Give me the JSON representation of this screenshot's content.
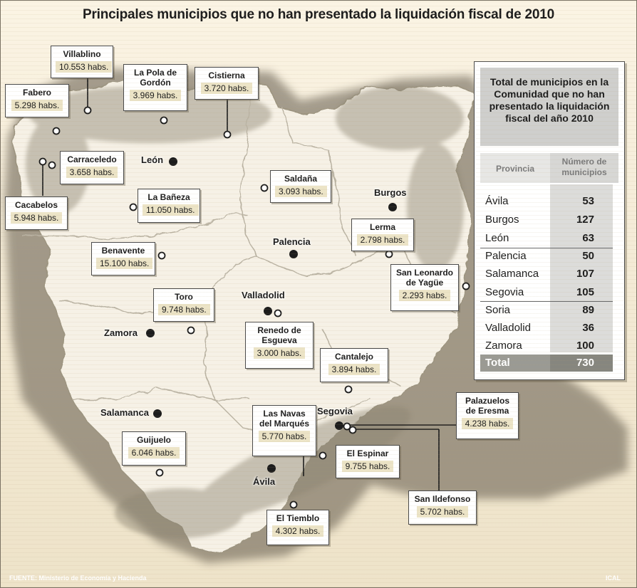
{
  "title": "Principales municipios que no han presentado la liquidación fiscal de 2010",
  "callouts": [
    {
      "name": "Villablino",
      "habs": "10.553 habs."
    },
    {
      "name": "Fabero",
      "habs": "5.298 habs."
    },
    {
      "name": "La Pola de Gordón",
      "habs": "3.969 habs."
    },
    {
      "name": "Cistierna",
      "habs": "3.720 habs."
    },
    {
      "name": "Carraceledo",
      "habs": "3.658 habs."
    },
    {
      "name": "Cacabelos",
      "habs": "5.948 habs."
    },
    {
      "name": "La Bañeza",
      "habs": "11.050 habs."
    },
    {
      "name": "Saldaña",
      "habs": "3.093 habs."
    },
    {
      "name": "Lerma",
      "habs": "2.798 habs."
    },
    {
      "name": "Benavente",
      "habs": "15.100 habs."
    },
    {
      "name": "San Leonardo de Yagüe",
      "habs": "2.293 habs."
    },
    {
      "name": "Toro",
      "habs": "9.748 habs."
    },
    {
      "name": "Renedo de Esgueva",
      "habs": "3.000 habs."
    },
    {
      "name": "Cantalejo",
      "habs": "3.894 habs."
    },
    {
      "name": "Palazuelos de Eresma",
      "habs": "4.238 habs."
    },
    {
      "name": "Las Navas del Marqués",
      "habs": "5.770 habs."
    },
    {
      "name": "Guijuelo",
      "habs": "6.046 habs."
    },
    {
      "name": "El Espinar",
      "habs": "9.755 habs."
    },
    {
      "name": "San Ildefonso",
      "habs": "5.702 habs."
    },
    {
      "name": "El Tiemblo",
      "habs": "4.302 habs."
    }
  ],
  "capitals": [
    "León",
    "Burgos",
    "Palencia",
    "Valladolid",
    "Zamora",
    "Salamanca",
    "Segovia",
    "Ávila"
  ],
  "table": {
    "title": "Total de municipios en la Comunidad que no han presentado la liquidación fiscal del año 2010",
    "col_provincia": "Provincia",
    "col_numero": "Número de municipios",
    "rows": [
      {
        "provincia": "Ávila",
        "numero": "53"
      },
      {
        "provincia": "Burgos",
        "numero": "127"
      },
      {
        "provincia": "León",
        "numero": "63"
      },
      {
        "provincia": "Palencia",
        "numero": "50"
      },
      {
        "provincia": "Salamanca",
        "numero": "107"
      },
      {
        "provincia": "Segovia",
        "numero": "105"
      },
      {
        "provincia": "Soria",
        "numero": "89"
      },
      {
        "provincia": "Valladolid",
        "numero": "36"
      },
      {
        "provincia": "Zamora",
        "numero": "100"
      }
    ],
    "total_label": "Total",
    "total_value": "730"
  },
  "footer": {
    "source": "FUENTE: Ministerio de Economía y Hacienda",
    "credit": "ICAL"
  },
  "colors": {
    "region_fill": "#f6f1e6",
    "mountain_shade": "#8c8472",
    "border_lines": "#b9b2a2",
    "outer_relief": "#5e5648"
  }
}
